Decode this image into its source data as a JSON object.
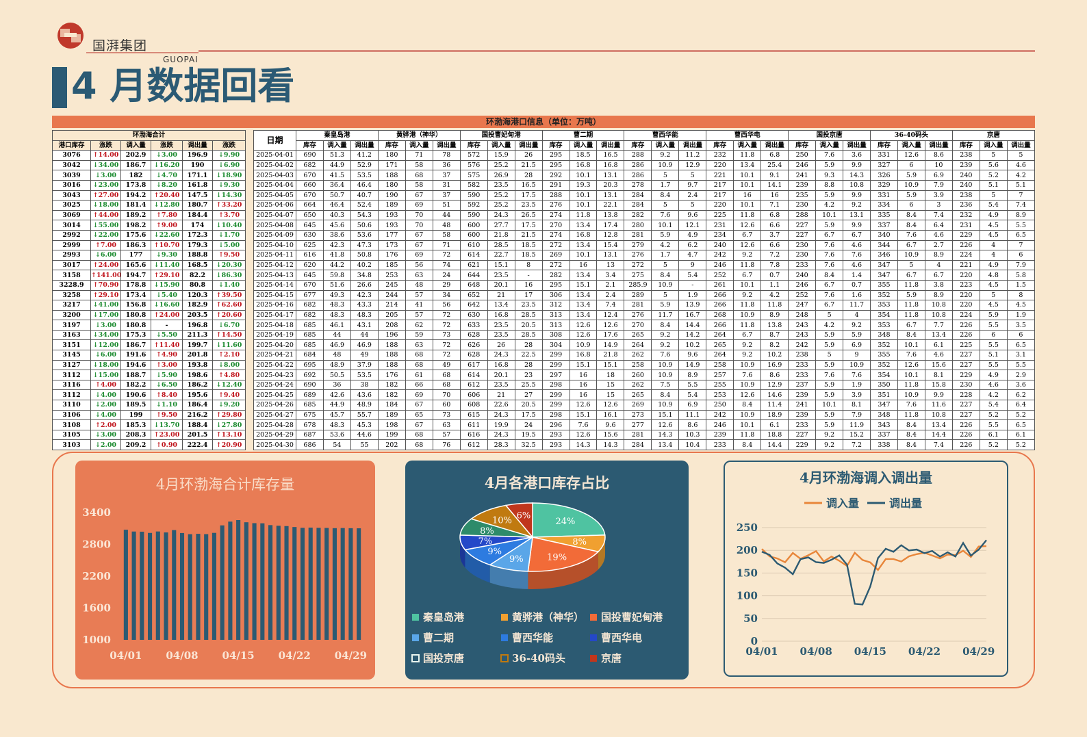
{
  "brand": {
    "name_cn": "国湃集团",
    "name_en": "GUOPAI"
  },
  "page_title": "4 月数据回看",
  "table_title": "环渤海港口信息（单位：万吨）",
  "summary_group": "环渤海合计",
  "summary_headers": [
    "港口库存",
    "涨跌",
    "调入量",
    "涨跌",
    "调出量",
    "涨跌"
  ],
  "date_header": "日期",
  "port_names": [
    "秦皇岛港",
    "黄骅港（神华）",
    "国投曹妃甸港",
    "曹二期",
    "曹西华能",
    "曹西华电",
    "国投京唐",
    "36-40码头",
    "京唐"
  ],
  "sub_headers": [
    "库存",
    "调入量",
    "调出量"
  ],
  "summary_rows": [
    [
      "3076",
      "↑14.00",
      "202.9",
      "↓3.00",
      "196.9",
      "↓9.90"
    ],
    [
      "3042",
      "↓34.00",
      "186.7",
      "↓16.20",
      "190",
      "↓6.90"
    ],
    [
      "3039",
      "↓3.00",
      "182",
      "↓4.70",
      "171.1",
      "↓18.90"
    ],
    [
      "3016",
      "↓23.00",
      "173.8",
      "↓8.20",
      "161.8",
      "↓9.30"
    ],
    [
      "3043",
      "↑27.00",
      "194.2",
      "↑20.40",
      "147.5",
      "↓14.30"
    ],
    [
      "3025",
      "↓18.00",
      "181.4",
      "↓12.80",
      "180.7",
      "↑33.20"
    ],
    [
      "3069",
      "↑44.00",
      "189.2",
      "↑7.80",
      "184.4",
      "↑3.70"
    ],
    [
      "3014",
      "↓55.00",
      "198.2",
      "↑9.00",
      "174",
      "↓10.40"
    ],
    [
      "2992",
      "↓22.00",
      "175.6",
      "↓22.60",
      "172.3",
      "↓1.70"
    ],
    [
      "2999",
      "↑7.00",
      "186.3",
      "↑10.70",
      "179.3",
      "↓5.00"
    ],
    [
      "2993",
      "↓6.00",
      "177",
      "↓9.30",
      "188.8",
      "↑9.50"
    ],
    [
      "3017",
      "↑24.00",
      "165.6",
      "↓11.40",
      "168.5",
      "↓20.30"
    ],
    [
      "3158",
      "↑141.00",
      "194.7",
      "↑29.10",
      "82.2",
      "↓86.30"
    ],
    [
      "3228.9",
      "↑70.90",
      "178.8",
      "↓15.90",
      "80.8",
      "↓1.40"
    ],
    [
      "3258",
      "↑29.10",
      "173.4",
      "↓5.40",
      "120.3",
      "↑39.50"
    ],
    [
      "3217",
      "↓41.00",
      "156.8",
      "↓16.60",
      "182.9",
      "↑62.60"
    ],
    [
      "3200",
      "↓17.00",
      "180.8",
      "↑24.00",
      "203.5",
      "↑20.60"
    ],
    [
      "3197",
      "↓3.00",
      "180.8",
      "-",
      "196.8",
      "↓6.70"
    ],
    [
      "3163",
      "↓34.00",
      "175.3",
      "↓5.50",
      "211.3",
      "↑14.50"
    ],
    [
      "3151",
      "↓12.00",
      "186.7",
      "↑11.40",
      "199.7",
      "↓11.60"
    ],
    [
      "3145",
      "↓6.00",
      "191.6",
      "↑4.90",
      "201.8",
      "↑2.10"
    ],
    [
      "3127",
      "↓18.00",
      "194.6",
      "↑3.00",
      "193.8",
      "↓8.00"
    ],
    [
      "3112",
      "↓15.00",
      "188.7",
      "↓5.90",
      "198.6",
      "↑4.80"
    ],
    [
      "3116",
      "↑4.00",
      "182.2",
      "↓6.50",
      "186.2",
      "↓12.40"
    ],
    [
      "3112",
      "↓4.00",
      "190.6",
      "↑8.40",
      "195.6",
      "↑9.40"
    ],
    [
      "3110",
      "↓2.00",
      "189.5",
      "↓1.10",
      "186.4",
      "↓9.20"
    ],
    [
      "3106",
      "↓4.00",
      "199",
      "↑9.50",
      "216.2",
      "↑29.80"
    ],
    [
      "3108",
      "↑2.00",
      "185.3",
      "↓13.70",
      "188.4",
      "↓27.80"
    ],
    [
      "3105",
      "↓3.00",
      "208.3",
      "↑23.00",
      "201.5",
      "↑13.10"
    ],
    [
      "3103",
      "↓2.00",
      "209.2",
      "↑0.90",
      "222.4",
      "↑20.90"
    ]
  ],
  "port_rows": [
    [
      "2025-04-01",
      "690",
      "51.3",
      "41.2",
      "180",
      "71",
      "78",
      "572",
      "15.9",
      "26",
      "295",
      "18.5",
      "16.5",
      "288",
      "9.2",
      "11.2",
      "232",
      "11.8",
      "6.8",
      "250",
      "7.6",
      "3.6",
      "331",
      "12.6",
      "8.6",
      "238",
      "5",
      "5"
    ],
    [
      "2025-04-02",
      "682",
      "44.9",
      "52.9",
      "171",
      "58",
      "36",
      "576",
      "25.2",
      "21.5",
      "295",
      "16.8",
      "16.8",
      "286",
      "10.9",
      "12.9",
      "220",
      "13.4",
      "25.4",
      "246",
      "5.9",
      "9.9",
      "327",
      "6",
      "10",
      "239",
      "5.6",
      "4.6"
    ],
    [
      "2025-04-03",
      "670",
      "41.5",
      "53.5",
      "188",
      "68",
      "37",
      "575",
      "26.9",
      "28",
      "292",
      "10.1",
      "13.1",
      "286",
      "5",
      "5",
      "221",
      "10.1",
      "9.1",
      "241",
      "9.3",
      "14.3",
      "326",
      "5.9",
      "6.9",
      "240",
      "5.2",
      "4.2"
    ],
    [
      "2025-04-04",
      "660",
      "36.4",
      "46.4",
      "180",
      "58",
      "31",
      "582",
      "23.5",
      "16.5",
      "291",
      "19.3",
      "20.3",
      "278",
      "1.7",
      "9.7",
      "217",
      "10.1",
      "14.1",
      "239",
      "8.8",
      "10.8",
      "329",
      "10.9",
      "7.9",
      "240",
      "5.1",
      "5.1"
    ],
    [
      "2025-04-05",
      "670",
      "50.7",
      "40.7",
      "190",
      "67",
      "37",
      "590",
      "25.2",
      "17.5",
      "288",
      "10.1",
      "13.1",
      "284",
      "8.4",
      "2.4",
      "217",
      "16",
      "16",
      "235",
      "5.9",
      "9.9",
      "331",
      "5.9",
      "3.9",
      "238",
      "5",
      "7"
    ],
    [
      "2025-04-06",
      "664",
      "46.4",
      "52.4",
      "189",
      "69",
      "51",
      "592",
      "25.2",
      "23.5",
      "276",
      "10.1",
      "22.1",
      "284",
      "5",
      "5",
      "220",
      "10.1",
      "7.1",
      "230",
      "4.2",
      "9.2",
      "334",
      "6",
      "3",
      "236",
      "5.4",
      "7.4"
    ],
    [
      "2025-04-07",
      "650",
      "40.3",
      "54.3",
      "193",
      "70",
      "44",
      "590",
      "24.3",
      "26.5",
      "274",
      "11.8",
      "13.8",
      "282",
      "7.6",
      "9.6",
      "225",
      "11.8",
      "6.8",
      "288",
      "10.1",
      "13.1",
      "335",
      "8.4",
      "7.4",
      "232",
      "4.9",
      "8.9"
    ],
    [
      "2025-04-08",
      "645",
      "45.6",
      "50.6",
      "193",
      "70",
      "48",
      "600",
      "27.7",
      "17.5",
      "270",
      "13.4",
      "17.4",
      "280",
      "10.1",
      "12.1",
      "231",
      "12.6",
      "6.6",
      "227",
      "5.9",
      "9.9",
      "337",
      "8.4",
      "6.4",
      "231",
      "4.5",
      "5.5"
    ],
    [
      "2025-04-09",
      "630",
      "38.6",
      "53.6",
      "177",
      "67",
      "58",
      "600",
      "21.8",
      "21.5",
      "274",
      "16.8",
      "12.8",
      "281",
      "5.9",
      "4.9",
      "234",
      "6.7",
      "3.7",
      "227",
      "6.7",
      "6.7",
      "340",
      "7.6",
      "4.6",
      "229",
      "4.5",
      "6.5"
    ],
    [
      "2025-04-10",
      "625",
      "42.3",
      "47.3",
      "173",
      "67",
      "71",
      "610",
      "28.5",
      "18.5",
      "272",
      "13.4",
      "15.4",
      "279",
      "4.2",
      "6.2",
      "240",
      "12.6",
      "6.6",
      "230",
      "7.6",
      "4.6",
      "344",
      "6.7",
      "2.7",
      "226",
      "4",
      "7"
    ],
    [
      "2025-04-11",
      "616",
      "41.8",
      "50.8",
      "176",
      "69",
      "72",
      "614",
      "22.7",
      "18.5",
      "269",
      "10.1",
      "13.1",
      "276",
      "1.7",
      "4.7",
      "242",
      "9.2",
      "7.2",
      "230",
      "7.6",
      "7.6",
      "346",
      "10.9",
      "8.9",
      "224",
      "4",
      "6"
    ],
    [
      "2025-04-12",
      "620",
      "44.2",
      "40.2",
      "185",
      "56",
      "74",
      "621",
      "15.1",
      "8",
      "272",
      "16",
      "13",
      "272",
      "5",
      "9",
      "246",
      "11.8",
      "7.8",
      "233",
      "7.6",
      "4.6",
      "347",
      "5",
      "4",
      "221",
      "4.9",
      "7.9"
    ],
    [
      "2025-04-13",
      "645",
      "59.8",
      "34.8",
      "253",
      "63",
      "24",
      "644",
      "23.5",
      "-",
      "282",
      "13.4",
      "3.4",
      "275",
      "8.4",
      "5.4",
      "252",
      "6.7",
      "0.7",
      "240",
      "8.4",
      "1.4",
      "347",
      "6.7",
      "6.7",
      "220",
      "4.8",
      "5.8"
    ],
    [
      "2025-04-14",
      "670",
      "51.6",
      "26.6",
      "245",
      "48",
      "29",
      "648",
      "20.1",
      "16",
      "295",
      "15.1",
      "2.1",
      "285.9",
      "10.9",
      "-",
      "261",
      "10.1",
      "1.1",
      "246",
      "6.7",
      "0.7",
      "355",
      "11.8",
      "3.8",
      "223",
      "4.5",
      "1.5"
    ],
    [
      "2025-04-15",
      "677",
      "49.3",
      "42.3",
      "244",
      "57",
      "34",
      "652",
      "21",
      "17",
      "306",
      "13.4",
      "2.4",
      "289",
      "5",
      "1.9",
      "266",
      "9.2",
      "4.2",
      "252",
      "7.6",
      "1.6",
      "352",
      "5.9",
      "8.9",
      "220",
      "5",
      "8"
    ],
    [
      "2025-04-16",
      "682",
      "48.3",
      "43.3",
      "214",
      "41",
      "56",
      "642",
      "13.4",
      "23.5",
      "312",
      "13.4",
      "7.4",
      "281",
      "5.9",
      "13.9",
      "266",
      "11.8",
      "11.8",
      "247",
      "6.7",
      "11.7",
      "353",
      "11.8",
      "10.8",
      "220",
      "4.5",
      "4.5"
    ],
    [
      "2025-04-17",
      "682",
      "48.3",
      "48.3",
      "205",
      "57",
      "72",
      "630",
      "16.8",
      "28.5",
      "313",
      "13.4",
      "12.4",
      "276",
      "11.7",
      "16.7",
      "268",
      "10.9",
      "8.9",
      "248",
      "5",
      "4",
      "354",
      "11.8",
      "10.8",
      "224",
      "5.9",
      "1.9"
    ],
    [
      "2025-04-18",
      "685",
      "46.1",
      "43.1",
      "208",
      "62",
      "72",
      "633",
      "23.5",
      "20.5",
      "313",
      "12.6",
      "12.6",
      "270",
      "8.4",
      "14.4",
      "266",
      "11.8",
      "13.8",
      "243",
      "4.2",
      "9.2",
      "353",
      "6.7",
      "7.7",
      "226",
      "5.5",
      "3.5"
    ],
    [
      "2025-04-19",
      "685",
      "44",
      "44",
      "196",
      "59",
      "73",
      "628",
      "23.5",
      "28.5",
      "308",
      "12.6",
      "17.6",
      "265",
      "9.2",
      "14.2",
      "264",
      "6.7",
      "8.7",
      "243",
      "5.9",
      "5.9",
      "348",
      "8.4",
      "13.4",
      "226",
      "6",
      "6"
    ],
    [
      "2025-04-20",
      "685",
      "46.9",
      "46.9",
      "188",
      "63",
      "72",
      "626",
      "26",
      "28",
      "304",
      "10.9",
      "14.9",
      "264",
      "9.2",
      "10.2",
      "265",
      "9.2",
      "8.2",
      "242",
      "5.9",
      "6.9",
      "352",
      "10.1",
      "6.1",
      "225",
      "5.5",
      "6.5"
    ],
    [
      "2025-04-21",
      "684",
      "48",
      "49",
      "188",
      "68",
      "72",
      "628",
      "24.3",
      "22.5",
      "299",
      "16.8",
      "21.8",
      "262",
      "7.6",
      "9.6",
      "264",
      "9.2",
      "10.2",
      "238",
      "5",
      "9",
      "355",
      "7.6",
      "4.6",
      "227",
      "5.1",
      "3.1"
    ],
    [
      "2025-04-22",
      "695",
      "48.9",
      "37.9",
      "188",
      "68",
      "49",
      "617",
      "16.8",
      "28",
      "299",
      "15.1",
      "15.1",
      "258",
      "10.9",
      "14.9",
      "258",
      "10.9",
      "16.9",
      "233",
      "5.9",
      "10.9",
      "352",
      "12.6",
      "15.6",
      "227",
      "5.5",
      "5.5"
    ],
    [
      "2025-04-23",
      "692",
      "50.5",
      "53.5",
      "176",
      "61",
      "68",
      "614",
      "20.1",
      "23",
      "297",
      "16",
      "18",
      "260",
      "10.9",
      "8.9",
      "257",
      "7.6",
      "8.6",
      "233",
      "7.6",
      "7.6",
      "354",
      "10.1",
      "8.1",
      "229",
      "4.9",
      "2.9"
    ],
    [
      "2025-04-24",
      "690",
      "36",
      "38",
      "182",
      "66",
      "68",
      "612",
      "23.5",
      "25.5",
      "298",
      "16",
      "15",
      "262",
      "7.5",
      "5.5",
      "255",
      "10.9",
      "12.9",
      "237",
      "5.9",
      "1.9",
      "350",
      "11.8",
      "15.8",
      "230",
      "4.6",
      "3.6"
    ],
    [
      "2025-04-25",
      "689",
      "42.6",
      "43.6",
      "182",
      "69",
      "70",
      "606",
      "21",
      "27",
      "299",
      "16",
      "15",
      "265",
      "8.4",
      "5.4",
      "253",
      "12.6",
      "14.6",
      "239",
      "5.9",
      "3.9",
      "351",
      "10.9",
      "9.9",
      "228",
      "4.2",
      "6.2"
    ],
    [
      "2025-04-26",
      "685",
      "44.9",
      "48.9",
      "184",
      "67",
      "60",
      "608",
      "22.6",
      "20.5",
      "299",
      "12.6",
      "12.6",
      "269",
      "10.9",
      "6.9",
      "250",
      "8.4",
      "11.4",
      "241",
      "10.1",
      "8.1",
      "347",
      "7.6",
      "11.6",
      "227",
      "5.4",
      "6.4"
    ],
    [
      "2025-04-27",
      "675",
      "45.7",
      "55.7",
      "189",
      "65",
      "73",
      "615",
      "24.3",
      "17.5",
      "298",
      "15.1",
      "16.1",
      "273",
      "15.1",
      "11.1",
      "242",
      "10.9",
      "18.9",
      "239",
      "5.9",
      "7.9",
      "348",
      "11.8",
      "10.8",
      "227",
      "5.2",
      "5.2"
    ],
    [
      "2025-04-28",
      "678",
      "48.3",
      "45.3",
      "198",
      "67",
      "63",
      "611",
      "19.9",
      "24",
      "296",
      "7.6",
      "9.6",
      "277",
      "12.6",
      "8.6",
      "246",
      "10.1",
      "6.1",
      "233",
      "5.9",
      "11.9",
      "343",
      "8.4",
      "13.4",
      "226",
      "5.5",
      "6.5"
    ],
    [
      "2025-04-29",
      "687",
      "53.6",
      "44.6",
      "199",
      "68",
      "57",
      "616",
      "24.3",
      "19.5",
      "293",
      "12.6",
      "15.6",
      "281",
      "14.3",
      "10.3",
      "239",
      "11.8",
      "18.8",
      "227",
      "9.2",
      "15.2",
      "337",
      "8.4",
      "14.4",
      "226",
      "6.1",
      "6.1"
    ],
    [
      "2025-04-30",
      "686",
      "54",
      "55",
      "202",
      "68",
      "76",
      "612",
      "28.3",
      "32.5",
      "293",
      "14.3",
      "14.3",
      "284",
      "13.4",
      "10.4",
      "233",
      "8.4",
      "14.4",
      "229",
      "9.2",
      "7.2",
      "338",
      "8.4",
      "7.4",
      "226",
      "5.2",
      "5.2"
    ]
  ],
  "chart_data": [
    {
      "type": "bar",
      "title": "4月环渤海合计库存量",
      "x": [
        "04/01",
        "04/02",
        "04/03",
        "04/04",
        "04/05",
        "04/06",
        "04/07",
        "04/08",
        "04/09",
        "04/10",
        "04/11",
        "04/12",
        "04/13",
        "04/14",
        "04/15",
        "04/16",
        "04/17",
        "04/18",
        "04/19",
        "04/20",
        "04/21",
        "04/22",
        "04/23",
        "04/24",
        "04/25",
        "04/26",
        "04/27",
        "04/28",
        "04/29",
        "04/30"
      ],
      "values": [
        3076,
        3042,
        3039,
        3016,
        3043,
        3025,
        3069,
        3014,
        2992,
        2999,
        2993,
        3017,
        3158,
        3228.9,
        3258,
        3217,
        3200,
        3197,
        3163,
        3151,
        3145,
        3127,
        3112,
        3116,
        3112,
        3110,
        3106,
        3108,
        3105,
        3103
      ],
      "ylim": [
        1000,
        3400
      ],
      "yticks": [
        1000,
        1600,
        2200,
        2800,
        3400
      ],
      "xticks": [
        "04/01",
        "04/08",
        "04/15",
        "04/22",
        "04/29"
      ],
      "color": "#2c5a72"
    },
    {
      "type": "pie",
      "title": "4月各港口库存占比",
      "labels": [
        "秦皇岛港",
        "黄骅港（神华）",
        "国投曹妃甸港",
        "曹二期",
        "曹西华能",
        "曹西华电",
        "国投京唐",
        "36-40码头",
        "京唐"
      ],
      "values": [
        24,
        8,
        19,
        9,
        9,
        7,
        8,
        10,
        6
      ],
      "colors": [
        "#4fc3a1",
        "#f0a030",
        "#f26b38",
        "#5aa6e8",
        "#2d7be0",
        "#2448c8",
        "#2e8b6a",
        "#c07a10",
        "#c0361c"
      ]
    },
    {
      "type": "line",
      "title": "4月环渤海调入调出量",
      "x": [
        "04/01",
        "04/02",
        "04/03",
        "04/04",
        "04/05",
        "04/06",
        "04/07",
        "04/08",
        "04/09",
        "04/10",
        "04/11",
        "04/12",
        "04/13",
        "04/14",
        "04/15",
        "04/16",
        "04/17",
        "04/18",
        "04/19",
        "04/20",
        "04/21",
        "04/22",
        "04/23",
        "04/24",
        "04/25",
        "04/26",
        "04/27",
        "04/28",
        "04/29",
        "04/30"
      ],
      "series": [
        {
          "name": "调入量",
          "color": "#e8863a",
          "values": [
            202.9,
            186.7,
            182,
            173.8,
            194.2,
            181.4,
            189.2,
            198.2,
            175.6,
            186.3,
            177,
            165.6,
            194.7,
            178.8,
            173.4,
            156.8,
            180.8,
            180.8,
            175.3,
            186.7,
            191.6,
            194.6,
            188.7,
            182.2,
            190.6,
            189.5,
            199,
            185.3,
            208.3,
            209.2
          ]
        },
        {
          "name": "调出量",
          "color": "#2c5a72",
          "values": [
            196.9,
            190,
            171.1,
            161.8,
            147.5,
            180.7,
            184.4,
            174,
            172.3,
            179.3,
            188.8,
            168.5,
            82.2,
            80.8,
            120.3,
            182.9,
            203.5,
            196.8,
            211.3,
            199.7,
            201.8,
            193.8,
            198.6,
            186.2,
            195.6,
            186.4,
            216.2,
            188.4,
            201.5,
            222.4
          ]
        }
      ],
      "ylim": [
        0,
        250
      ],
      "yticks": [
        0,
        50,
        100,
        150,
        200,
        250
      ],
      "xticks": [
        "04/01",
        "04/08",
        "04/15",
        "04/22",
        "04/29"
      ]
    }
  ]
}
